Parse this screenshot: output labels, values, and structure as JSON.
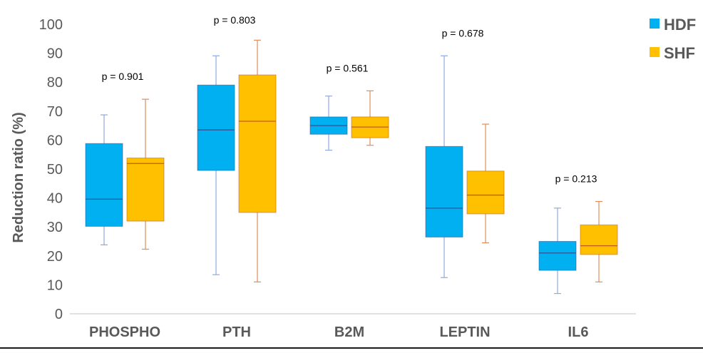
{
  "chart_data": {
    "type": "boxplot",
    "ylabel": "Reduction ratio (%)",
    "xlabel": "",
    "ylim": [
      0,
      100
    ],
    "yticks": [
      0,
      10,
      20,
      30,
      40,
      50,
      60,
      70,
      80,
      90,
      100
    ],
    "grid": false,
    "legend_position": "top-right",
    "categories": [
      "PHOSPHO",
      "PTH",
      "B2M",
      "LEPTIN",
      "IL6"
    ],
    "p_values": [
      "p = 0.901",
      "p = 0.803",
      "p = 0.561",
      "p = 0.678",
      "p = 0.213"
    ],
    "series": [
      {
        "name": "HDF",
        "color": "#00b0f0",
        "whisker_color": "#8faadc",
        "median_color": "#2f5597",
        "boxes": [
          {
            "min": 23.8,
            "q1": 30.2,
            "median": 39.6,
            "q3": 58.8,
            "max": 68.7
          },
          {
            "min": 13.5,
            "q1": 49.5,
            "median": 63.5,
            "q3": 79.0,
            "max": 89.1
          },
          {
            "min": 56.5,
            "q1": 62.0,
            "median": 65.0,
            "q3": 68.0,
            "max": 75.2
          },
          {
            "min": 12.5,
            "q1": 26.5,
            "median": 36.5,
            "q3": 57.8,
            "max": 89.1
          },
          {
            "min": 7.0,
            "q1": 15.0,
            "median": 21.0,
            "q3": 25.0,
            "max": 36.5
          }
        ]
      },
      {
        "name": "SHF",
        "color": "#ffc000",
        "whisker_color": "#e08e5b",
        "median_color": "#c55a11",
        "boxes": [
          {
            "min": 22.3,
            "q1": 32.0,
            "median": 51.9,
            "q3": 53.8,
            "max": 74.1
          },
          {
            "min": 11.0,
            "q1": 35.0,
            "median": 66.5,
            "q3": 82.5,
            "max": 94.5
          },
          {
            "min": 58.2,
            "q1": 60.8,
            "median": 64.5,
            "q3": 68.0,
            "max": 77.0
          },
          {
            "min": 24.5,
            "q1": 34.5,
            "median": 41.0,
            "q3": 49.3,
            "max": 65.5
          },
          {
            "min": 11.0,
            "q1": 20.5,
            "median": 23.5,
            "q3": 30.7,
            "max": 38.8
          }
        ]
      }
    ]
  }
}
